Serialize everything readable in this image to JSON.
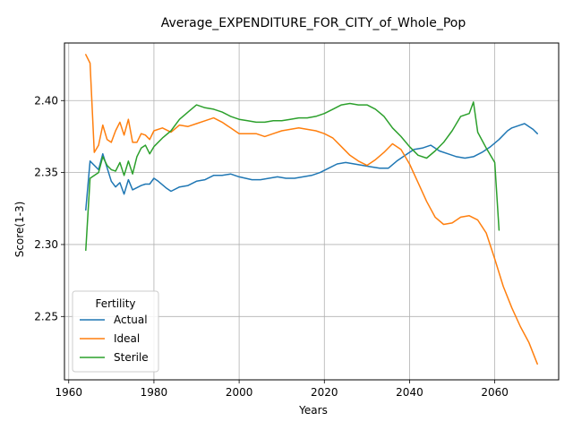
{
  "chart_data": {
    "type": "line",
    "title": "Average_EXPENDITURE_FOR_CITY_of_Whole_Pop",
    "xlabel": "Years",
    "ylabel": "Score(1-3)",
    "xlim": [
      1959,
      2075
    ],
    "ylim": [
      2.206,
      2.44
    ],
    "xticks": [
      1960,
      1980,
      2000,
      2020,
      2040,
      2060
    ],
    "yticks": [
      2.25,
      2.3,
      2.35,
      2.4
    ],
    "ytick_labels": [
      "2.25",
      "2.30",
      "2.35",
      "2.40"
    ],
    "grid": true,
    "legend": {
      "title": "Fertility",
      "position": "lower-left"
    },
    "series": [
      {
        "name": "Actual",
        "color": "#1f77b4",
        "x": [
          1964,
          1965,
          1967,
          1968,
          1970,
          1971,
          1972,
          1973,
          1974,
          1975,
          1977,
          1978,
          1979,
          1980,
          1981,
          1983,
          1984,
          1986,
          1988,
          1990,
          1992,
          1994,
          1996,
          1998,
          2000,
          2003,
          2005,
          2007,
          2009,
          2011,
          2013,
          2015,
          2017,
          2019,
          2021,
          2023,
          2025,
          2027,
          2029,
          2031,
          2033,
          2035,
          2037,
          2039,
          2041,
          2043,
          2045,
          2047,
          2049,
          2051,
          2053,
          2055,
          2057,
          2059,
          2061,
          2063,
          2064,
          2066,
          2067,
          2068,
          2069,
          2070
        ],
        "values": [
          2.324,
          2.358,
          2.352,
          2.363,
          2.344,
          2.34,
          2.343,
          2.335,
          2.345,
          2.338,
          2.341,
          2.342,
          2.342,
          2.346,
          2.344,
          2.339,
          2.337,
          2.34,
          2.341,
          2.344,
          2.345,
          2.348,
          2.348,
          2.349,
          2.347,
          2.345,
          2.345,
          2.346,
          2.347,
          2.346,
          2.346,
          2.347,
          2.348,
          2.35,
          2.353,
          2.356,
          2.357,
          2.356,
          2.355,
          2.354,
          2.353,
          2.353,
          2.358,
          2.362,
          2.366,
          2.367,
          2.369,
          2.365,
          2.363,
          2.361,
          2.36,
          2.361,
          2.364,
          2.368,
          2.373,
          2.379,
          2.381,
          2.383,
          2.384,
          2.382,
          2.38,
          2.377
        ]
      },
      {
        "name": "Ideal",
        "color": "#ff7f0e",
        "x": [
          1964,
          1965,
          1966,
          1967,
          1968,
          1969,
          1970,
          1971,
          1972,
          1973,
          1974,
          1975,
          1976,
          1977,
          1978,
          1979,
          1980,
          1982,
          1984,
          1986,
          1988,
          1990,
          1992,
          1994,
          1996,
          1998,
          2000,
          2002,
          2004,
          2006,
          2008,
          2010,
          2012,
          2014,
          2016,
          2018,
          2020,
          2022,
          2024,
          2026,
          2028,
          2030,
          2032,
          2034,
          2036,
          2038,
          2040,
          2042,
          2044,
          2046,
          2048,
          2050,
          2052,
          2054,
          2056,
          2058,
          2060,
          2062,
          2064,
          2066,
          2068,
          2070
        ],
        "values": [
          2.432,
          2.426,
          2.364,
          2.369,
          2.383,
          2.373,
          2.371,
          2.379,
          2.385,
          2.376,
          2.387,
          2.371,
          2.371,
          2.377,
          2.376,
          2.373,
          2.379,
          2.381,
          2.378,
          2.383,
          2.382,
          2.384,
          2.386,
          2.388,
          2.385,
          2.381,
          2.377,
          2.377,
          2.377,
          2.375,
          2.377,
          2.379,
          2.38,
          2.381,
          2.38,
          2.379,
          2.377,
          2.374,
          2.368,
          2.362,
          2.358,
          2.355,
          2.359,
          2.364,
          2.37,
          2.366,
          2.356,
          2.343,
          2.33,
          2.319,
          2.314,
          2.315,
          2.319,
          2.32,
          2.317,
          2.308,
          2.29,
          2.271,
          2.256,
          2.243,
          2.232,
          2.217
        ]
      },
      {
        "name": "Sterile",
        "color": "#2ca02c",
        "x": [
          1964,
          1965,
          1967,
          1968,
          1969,
          1970,
          1971,
          1972,
          1973,
          1974,
          1975,
          1976,
          1977,
          1978,
          1979,
          1980,
          1982,
          1984,
          1986,
          1988,
          1990,
          1992,
          1994,
          1996,
          1998,
          2000,
          2002,
          2004,
          2006,
          2008,
          2010,
          2012,
          2014,
          2016,
          2018,
          2020,
          2022,
          2024,
          2026,
          2028,
          2030,
          2032,
          2034,
          2036,
          2038,
          2040,
          2042,
          2044,
          2046,
          2048,
          2050,
          2052,
          2054,
          2055,
          2056,
          2058,
          2060,
          2061
        ],
        "values": [
          2.296,
          2.346,
          2.35,
          2.361,
          2.355,
          2.352,
          2.351,
          2.357,
          2.348,
          2.358,
          2.349,
          2.361,
          2.367,
          2.369,
          2.363,
          2.368,
          2.374,
          2.379,
          2.387,
          2.392,
          2.397,
          2.395,
          2.394,
          2.392,
          2.389,
          2.387,
          2.386,
          2.385,
          2.385,
          2.386,
          2.386,
          2.387,
          2.388,
          2.388,
          2.389,
          2.391,
          2.394,
          2.397,
          2.398,
          2.397,
          2.397,
          2.394,
          2.389,
          2.381,
          2.375,
          2.368,
          2.362,
          2.36,
          2.365,
          2.371,
          2.379,
          2.389,
          2.391,
          2.399,
          2.378,
          2.367,
          2.357,
          2.31
        ]
      }
    ]
  }
}
